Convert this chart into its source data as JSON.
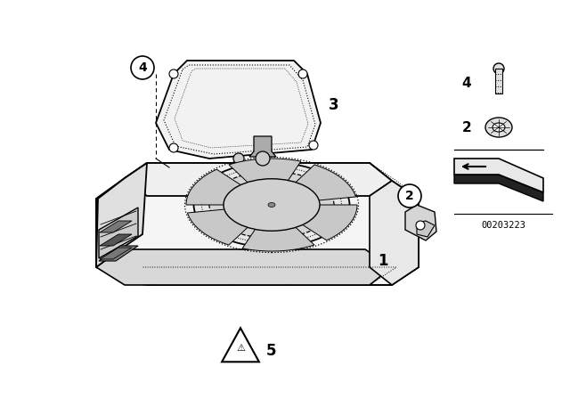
{
  "bg_color": "#ffffff",
  "fig_width": 6.4,
  "fig_height": 4.48,
  "dpi": 100,
  "doc_number": "00203223"
}
